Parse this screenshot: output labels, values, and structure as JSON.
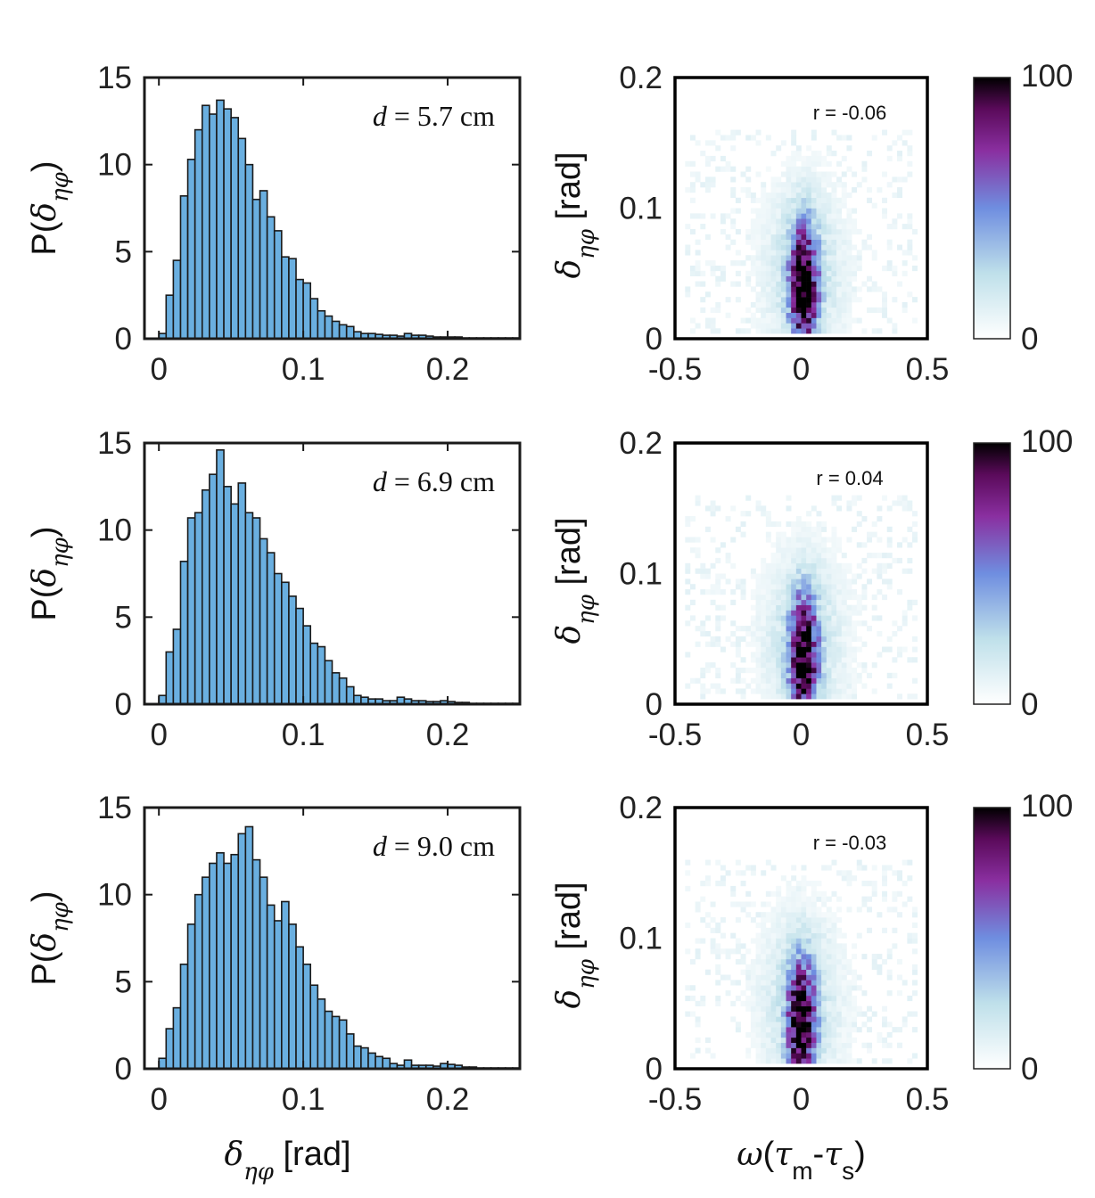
{
  "chart_data": [
    {
      "type": "bar",
      "panel": "histogram-top",
      "annotation": "d = 5.7 cm",
      "ylabel": "P(δηφ)",
      "xlim": [
        -0.01,
        0.25
      ],
      "ylim": [
        0,
        15
      ],
      "xticks": [
        "0",
        "0.1",
        "0.2"
      ],
      "yticks": [
        "0",
        "5",
        "10",
        "15"
      ],
      "bin_width": 0.005,
      "bin_start": 0,
      "values": [
        0.3,
        2.5,
        4.5,
        8.2,
        10.3,
        12.0,
        13.4,
        12.9,
        13.7,
        13.2,
        12.7,
        11.5,
        10.0,
        8.0,
        8.5,
        7.0,
        6.2,
        4.7,
        4.6,
        3.4,
        3.2,
        2.3,
        1.6,
        1.3,
        1.0,
        0.8,
        0.7,
        0.4,
        0.3,
        0.3,
        0.25,
        0.2,
        0.2,
        0.15,
        0.3,
        0.2,
        0.2,
        0.15,
        0.1,
        0.1,
        0.1,
        0.1,
        0.05,
        0.05,
        0.05,
        0.05,
        0.05,
        0.05,
        0.05,
        0.05
      ]
    },
    {
      "type": "heatmap",
      "panel": "joint-top",
      "annotation": "r = -0.06",
      "ylabel": "δηφ [rad]",
      "xlim": [
        -0.5,
        0.5
      ],
      "ylim": [
        0,
        0.2
      ],
      "xticks": [
        "-0.5",
        "0",
        "0.5"
      ],
      "yticks": [
        "0",
        "0.1",
        "0.2"
      ],
      "colorbar_ticks": [
        "0",
        "100"
      ],
      "colorbar_range": [
        0,
        100
      ],
      "colormap": [
        "#ffffff",
        "#bfe0ea",
        "#6f8ee0",
        "#8a2fa0",
        "#5a0a5a",
        "#000000"
      ],
      "peak_x": 0.01,
      "peak_y": 0.04
    },
    {
      "type": "bar",
      "panel": "histogram-middle",
      "annotation": "d = 6.9 cm",
      "ylabel": "P(δηφ)",
      "xlim": [
        -0.01,
        0.25
      ],
      "ylim": [
        0,
        15
      ],
      "xticks": [
        "0",
        "0.1",
        "0.2"
      ],
      "yticks": [
        "0",
        "5",
        "10",
        "15"
      ],
      "bin_width": 0.005,
      "bin_start": 0,
      "values": [
        0.5,
        3.0,
        4.3,
        8.2,
        10.7,
        11.0,
        12.3,
        13.2,
        14.6,
        12.5,
        11.5,
        12.7,
        11.0,
        10.7,
        9.5,
        8.7,
        7.5,
        7.0,
        6.2,
        5.5,
        4.5,
        3.5,
        3.3,
        2.5,
        1.8,
        1.5,
        1.0,
        0.5,
        0.4,
        0.3,
        0.3,
        0.2,
        0.2,
        0.4,
        0.3,
        0.2,
        0.2,
        0.15,
        0.15,
        0.2,
        0.15,
        0.1,
        0.1,
        0.05,
        0.05,
        0.05,
        0.05,
        0.05,
        0.05,
        0.05
      ]
    },
    {
      "type": "heatmap",
      "panel": "joint-middle",
      "annotation": "r = 0.04",
      "ylabel": "δηφ [rad]",
      "xlim": [
        -0.5,
        0.5
      ],
      "ylim": [
        0,
        0.2
      ],
      "xticks": [
        "-0.5",
        "0",
        "0.5"
      ],
      "yticks": [
        "0",
        "0.1",
        "0.2"
      ],
      "colorbar_ticks": [
        "0",
        "100"
      ],
      "colorbar_range": [
        0,
        100
      ],
      "colormap": [
        "#ffffff",
        "#bfe0ea",
        "#6f8ee0",
        "#8a2fa0",
        "#5a0a5a",
        "#000000"
      ],
      "peak_x": 0.01,
      "peak_y": 0.035
    },
    {
      "type": "bar",
      "panel": "histogram-bottom",
      "annotation": "d = 9.0 cm",
      "ylabel": "P(δηφ)",
      "xlabel": "δηφ [rad]",
      "xlim": [
        -0.01,
        0.25
      ],
      "ylim": [
        0,
        15
      ],
      "xticks": [
        "0",
        "0.1",
        "0.2"
      ],
      "yticks": [
        "0",
        "5",
        "10",
        "15"
      ],
      "bin_width": 0.005,
      "bin_start": 0,
      "values": [
        0.6,
        2.3,
        3.5,
        6.0,
        8.3,
        10.0,
        11.0,
        11.8,
        12.4,
        11.8,
        12.3,
        13.5,
        13.9,
        12.0,
        11.0,
        9.4,
        8.5,
        9.6,
        8.3,
        7.0,
        6.0,
        4.8,
        4.0,
        3.3,
        3.0,
        2.8,
        2.0,
        1.3,
        1.2,
        0.9,
        0.7,
        0.6,
        0.3,
        0.2,
        0.5,
        0.2,
        0.2,
        0.2,
        0.15,
        0.3,
        0.25,
        0.2,
        0.1,
        0.1,
        0.05,
        0.05,
        0.05,
        0.05,
        0.05,
        0.05
      ]
    },
    {
      "type": "heatmap",
      "panel": "joint-bottom",
      "annotation": "r = -0.03",
      "ylabel": "δηφ [rad]",
      "xlabel": "ω(τm-τs)",
      "xlim": [
        -0.5,
        0.5
      ],
      "ylim": [
        0,
        0.2
      ],
      "xticks": [
        "-0.5",
        "0",
        "0.5"
      ],
      "yticks": [
        "0",
        "0.1",
        "0.2"
      ],
      "colorbar_ticks": [
        "0",
        "100"
      ],
      "colorbar_range": [
        0,
        100
      ],
      "colormap": [
        "#ffffff",
        "#bfe0ea",
        "#6f8ee0",
        "#8a2fa0",
        "#5a0a5a",
        "#000000"
      ],
      "peak_x": 0.0,
      "peak_y": 0.035
    }
  ]
}
